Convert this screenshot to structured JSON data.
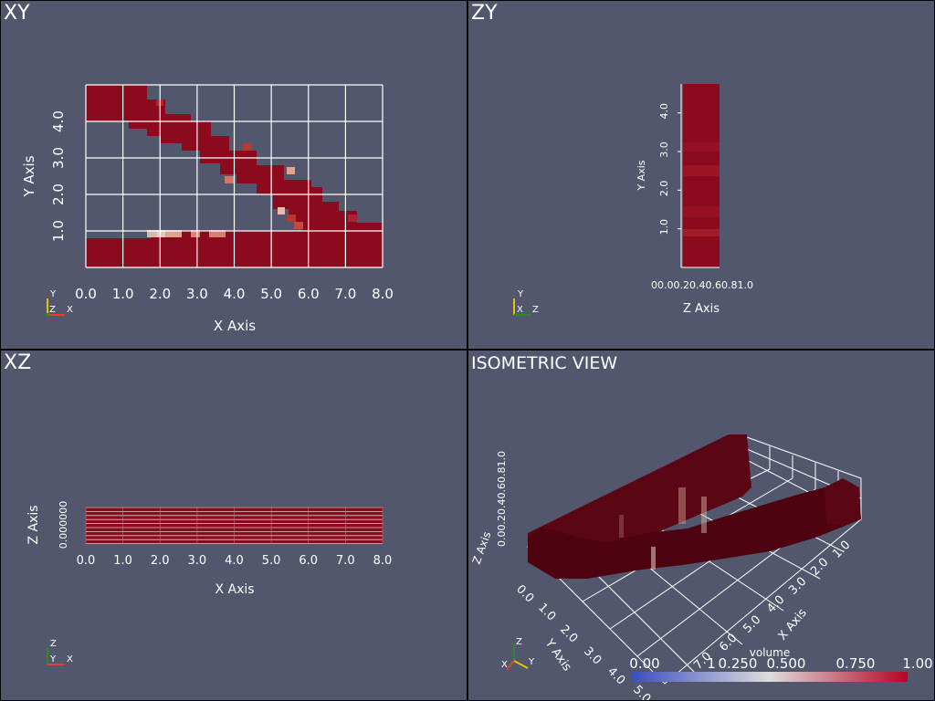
{
  "panes": {
    "xy": {
      "title": "XY"
    },
    "zy": {
      "title": "ZY"
    },
    "xz": {
      "title": "XZ"
    },
    "iso": {
      "title": "ISOMETRIC VIEW"
    }
  },
  "xy_plot": {
    "xlabel": "X Axis",
    "ylabel": "Y Axis",
    "xticks": [
      "0.0",
      "1.0",
      "2.0",
      "3.0",
      "4.0",
      "5.0",
      "6.0",
      "7.0",
      "8.0"
    ],
    "yticks": [
      "1.0",
      "2.0",
      "3.0",
      "4.0"
    ],
    "triad": {
      "y": "Y",
      "z": "Z",
      "x": "X"
    }
  },
  "zy_plot": {
    "xlabel": "Z Axis",
    "ylabel": "Y Axis",
    "xticks_text": "00.00.20.40.60.81.0",
    "yticks": [
      "1.0",
      "2.0",
      "3.0",
      "4.0"
    ],
    "triad": {
      "y": "Y",
      "x": "X",
      "z": "Z"
    }
  },
  "xz_plot": {
    "xlabel": "X Axis",
    "ylabel": "Z Axis",
    "xticks": [
      "0.0",
      "1.0",
      "2.0",
      "3.0",
      "4.0",
      "5.0",
      "6.0",
      "7.0",
      "8.0"
    ],
    "zticks_text": "0.000000",
    "triad": {
      "z": "Z",
      "y": "Y",
      "x": "X"
    }
  },
  "iso_plot": {
    "xlabel": "X Axis",
    "ylabel": "Y Axis",
    "zlabel": "Z Axis",
    "xticks": [
      "1.0",
      "2.0",
      "3.0",
      "4.0",
      "5.0",
      "6.0",
      "7.0"
    ],
    "yticks": [
      "0.0",
      "1.0",
      "2.0",
      "3.0",
      "4.0",
      "5.0"
    ],
    "triad": {
      "z": "Z",
      "x": "X",
      "y": "Y"
    }
  },
  "colorbar": {
    "title": "volume",
    "ticks": [
      "0.00",
      "0.250",
      "0.500",
      "0.750",
      "1.00"
    ],
    "extra_tick": "1",
    "low_color": "#3b4cc0",
    "mid_color": "#dddddd",
    "high_color": "#b40426"
  },
  "colors": {
    "background": "#52576e",
    "data_red": "#8b0a1e",
    "dark_red": "#4d0310"
  }
}
